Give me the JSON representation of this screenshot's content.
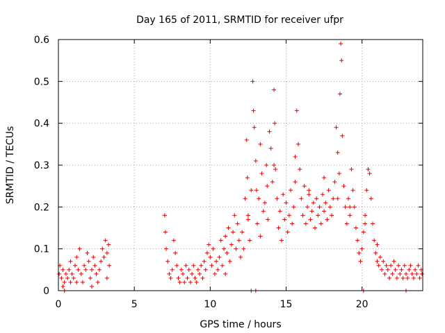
{
  "chart_data": {
    "type": "scatter",
    "title": "Day 165 of 2011, SRMTID for receiver ufpr",
    "xlabel": "GPS time / hours",
    "ylabel": "SRMTID / TECUs",
    "xlim": [
      0,
      24
    ],
    "ylim": [
      0,
      0.6
    ],
    "xticks": [
      0,
      5,
      10,
      15,
      20
    ],
    "xtick_labels": [
      "0",
      "5",
      "10",
      "15",
      "20"
    ],
    "yticks": [
      0,
      0.1,
      0.2,
      0.3,
      0.4,
      0.5,
      0.6
    ],
    "ytick_labels": [
      "0",
      "0.1",
      "0.2",
      "0.3",
      "0.4",
      "0.5",
      "0.6"
    ],
    "grid": true,
    "marker": "+",
    "color": "#e00000",
    "series": [
      {
        "name": "SRMTID",
        "points": [
          [
            0.05,
            0.04
          ],
          [
            0.1,
            0.06
          ],
          [
            0.2,
            0.03
          ],
          [
            0.3,
            0.05
          ],
          [
            0.4,
            0.02
          ],
          [
            0.5,
            0.04
          ],
          [
            0.6,
            0.03
          ],
          [
            0.7,
            0.05
          ],
          [
            0.8,
            0.07
          ],
          [
            0.9,
            0.04
          ],
          [
            1.0,
            0.03
          ],
          [
            1.1,
            0.06
          ],
          [
            1.2,
            0.08
          ],
          [
            1.3,
            0.05
          ],
          [
            1.4,
            0.1
          ],
          [
            1.5,
            0.04
          ],
          [
            1.6,
            0.02
          ],
          [
            1.7,
            0.06
          ],
          [
            1.8,
            0.05
          ],
          [
            1.9,
            0.09
          ],
          [
            2.0,
            0.07
          ],
          [
            2.1,
            0.03
          ],
          [
            2.2,
            0.05
          ],
          [
            2.3,
            0.08
          ],
          [
            2.4,
            0.06
          ],
          [
            2.5,
            0.04
          ],
          [
            2.6,
            0.02
          ],
          [
            2.7,
            0.05
          ],
          [
            2.8,
            0.07
          ],
          [
            2.9,
            0.1
          ],
          [
            3.0,
            0.08
          ],
          [
            3.1,
            0.12
          ],
          [
            3.2,
            0.09
          ],
          [
            3.3,
            0.11
          ],
          [
            3.35,
            0.06
          ],
          [
            0.3,
            0.01
          ],
          [
            1.2,
            0.02
          ],
          [
            2.2,
            0.01
          ],
          [
            3.2,
            0.03
          ],
          [
            0.8,
            0.02
          ],
          [
            7.0,
            0.18
          ],
          [
            7.05,
            0.14
          ],
          [
            7.1,
            0.1
          ],
          [
            7.2,
            0.07
          ],
          [
            7.3,
            0.04
          ],
          [
            7.4,
            0.03
          ],
          [
            7.5,
            0.05
          ],
          [
            7.6,
            0.12
          ],
          [
            7.7,
            0.09
          ],
          [
            7.8,
            0.06
          ],
          [
            7.9,
            0.03
          ],
          [
            8.0,
            0.02
          ],
          [
            8.1,
            0.05
          ],
          [
            8.2,
            0.04
          ],
          [
            8.3,
            0.02
          ],
          [
            8.4,
            0.06
          ],
          [
            8.5,
            0.03
          ],
          [
            8.6,
            0.05
          ],
          [
            8.7,
            0.02
          ],
          [
            8.8,
            0.04
          ],
          [
            8.9,
            0.06
          ],
          [
            9.0,
            0.03
          ],
          [
            9.1,
            0.02
          ],
          [
            9.2,
            0.05
          ],
          [
            9.3,
            0.04
          ],
          [
            9.4,
            0.06
          ],
          [
            9.5,
            0.03
          ],
          [
            9.6,
            0.07
          ],
          [
            9.7,
            0.05
          ],
          [
            9.8,
            0.09
          ],
          [
            9.9,
            0.11
          ],
          [
            10.0,
            0.08
          ],
          [
            10.1,
            0.06
          ],
          [
            10.2,
            0.1
          ],
          [
            10.3,
            0.04
          ],
          [
            10.4,
            0.07
          ],
          [
            10.5,
            0.05
          ],
          [
            10.6,
            0.08
          ],
          [
            10.7,
            0.12
          ],
          [
            10.8,
            0.06
          ],
          [
            10.9,
            0.1
          ],
          [
            11.0,
            0.13
          ],
          [
            11.1,
            0.09
          ],
          [
            11.2,
            0.15
          ],
          [
            11.3,
            0.07
          ],
          [
            11.4,
            0.11
          ],
          [
            11.5,
            0.14
          ],
          [
            11.6,
            0.18
          ],
          [
            11.7,
            0.1
          ],
          [
            11.8,
            0.16
          ],
          [
            11.9,
            0.12
          ],
          [
            12.0,
            0.08
          ],
          [
            12.1,
            0.14
          ],
          [
            12.2,
            0.1
          ],
          [
            12.3,
            0.22
          ],
          [
            12.4,
            0.36
          ],
          [
            12.45,
            0.27
          ],
          [
            12.5,
            0.18
          ],
          [
            12.6,
            0.12
          ],
          [
            12.7,
            0.24
          ],
          [
            12.8,
            0.5
          ],
          [
            12.85,
            0.43
          ],
          [
            12.9,
            0.39
          ],
          [
            13.0,
            0.31
          ],
          [
            13.05,
            0.24
          ],
          [
            13.1,
            0.16
          ],
          [
            13.2,
            0.22
          ],
          [
            13.3,
            0.13
          ],
          [
            13.4,
            0.28
          ],
          [
            13.5,
            0.19
          ],
          [
            13.6,
            0.21
          ],
          [
            13.7,
            0.3
          ],
          [
            13.75,
            0.25
          ],
          [
            13.8,
            0.17
          ],
          [
            13.9,
            0.38
          ],
          [
            14.0,
            0.34
          ],
          [
            14.1,
            0.26
          ],
          [
            14.2,
            0.48
          ],
          [
            14.25,
            0.4
          ],
          [
            14.3,
            0.29
          ],
          [
            14.4,
            0.22
          ],
          [
            14.5,
            0.15
          ],
          [
            14.6,
            0.19
          ],
          [
            14.7,
            0.12
          ],
          [
            14.8,
            0.23
          ],
          [
            14.9,
            0.17
          ],
          [
            15.0,
            0.21
          ],
          [
            15.1,
            0.14
          ],
          [
            15.2,
            0.18
          ],
          [
            15.3,
            0.24
          ],
          [
            15.4,
            0.16
          ],
          [
            15.5,
            0.2
          ],
          [
            15.6,
            0.26
          ],
          [
            15.7,
            0.43
          ],
          [
            15.8,
            0.35
          ],
          [
            15.9,
            0.29
          ],
          [
            16.0,
            0.22
          ],
          [
            16.1,
            0.18
          ],
          [
            16.2,
            0.25
          ],
          [
            16.3,
            0.16
          ],
          [
            16.4,
            0.2
          ],
          [
            16.5,
            0.23
          ],
          [
            16.6,
            0.17
          ],
          [
            16.7,
            0.19
          ],
          [
            16.8,
            0.21
          ],
          [
            16.9,
            0.15
          ],
          [
            17.0,
            0.22
          ],
          [
            17.1,
            0.18
          ],
          [
            17.2,
            0.2
          ],
          [
            17.3,
            0.16
          ],
          [
            17.4,
            0.23
          ],
          [
            17.5,
            0.19
          ],
          [
            17.6,
            0.21
          ],
          [
            17.7,
            0.17
          ],
          [
            17.8,
            0.24
          ],
          [
            17.9,
            0.2
          ],
          [
            18.0,
            0.18
          ],
          [
            18.1,
            0.22
          ],
          [
            18.2,
            0.26
          ],
          [
            18.3,
            0.39
          ],
          [
            18.4,
            0.33
          ],
          [
            18.5,
            0.28
          ],
          [
            18.55,
            0.47
          ],
          [
            18.6,
            0.59
          ],
          [
            18.65,
            0.55
          ],
          [
            18.7,
            0.37
          ],
          [
            18.8,
            0.25
          ],
          [
            18.9,
            0.2
          ],
          [
            19.0,
            0.16
          ],
          [
            19.1,
            0.22
          ],
          [
            19.2,
            0.18
          ],
          [
            19.3,
            0.29
          ],
          [
            19.4,
            0.24
          ],
          [
            19.5,
            0.2
          ],
          [
            19.6,
            0.15
          ],
          [
            19.7,
            0.12
          ],
          [
            19.8,
            0.09
          ],
          [
            19.9,
            0.07
          ],
          [
            20.0,
            0.1
          ],
          [
            20.1,
            0.14
          ],
          [
            20.2,
            0.18
          ],
          [
            20.3,
            0.24
          ],
          [
            20.4,
            0.29
          ],
          [
            20.5,
            0.28
          ],
          [
            20.6,
            0.22
          ],
          [
            20.7,
            0.16
          ],
          [
            20.8,
            0.12
          ],
          [
            20.9,
            0.09
          ],
          [
            21.0,
            0.07
          ],
          [
            21.1,
            0.06
          ],
          [
            21.2,
            0.08
          ],
          [
            21.3,
            0.05
          ],
          [
            21.4,
            0.07
          ],
          [
            21.5,
            0.04
          ],
          [
            21.6,
            0.06
          ],
          [
            21.7,
            0.05
          ],
          [
            21.8,
            0.03
          ],
          [
            21.9,
            0.06
          ],
          [
            22.0,
            0.04
          ],
          [
            22.1,
            0.07
          ],
          [
            22.2,
            0.05
          ],
          [
            22.3,
            0.03
          ],
          [
            22.4,
            0.06
          ],
          [
            22.5,
            0.04
          ],
          [
            22.6,
            0.05
          ],
          [
            22.7,
            0.03
          ],
          [
            22.8,
            0.06
          ],
          [
            22.9,
            0.04
          ],
          [
            23.0,
            0.03
          ],
          [
            23.1,
            0.05
          ],
          [
            23.2,
            0.06
          ],
          [
            23.3,
            0.04
          ],
          [
            23.4,
            0.03
          ],
          [
            23.5,
            0.05
          ],
          [
            23.6,
            0.04
          ],
          [
            23.7,
            0.06
          ],
          [
            23.8,
            0.03
          ],
          [
            23.9,
            0.05
          ],
          [
            23.95,
            0.04
          ],
          [
            21.0,
            0.11
          ],
          [
            13.3,
            0.35
          ],
          [
            12.5,
            0.17
          ],
          [
            14.2,
            0.3
          ],
          [
            15.6,
            0.32
          ],
          [
            16.5,
            0.24
          ],
          [
            17.5,
            0.27
          ],
          [
            18.4,
            0.22
          ],
          [
            19.2,
            0.2
          ],
          [
            20.2,
            0.16
          ],
          [
            11.0,
            0.04
          ],
          [
            0.4,
            0.0
          ],
          [
            12.7,
            0.0
          ],
          [
            20.1,
            0.0
          ],
          [
            22.9,
            0.0
          ],
          [
            13.0,
            0.0
          ]
        ]
      }
    ]
  }
}
